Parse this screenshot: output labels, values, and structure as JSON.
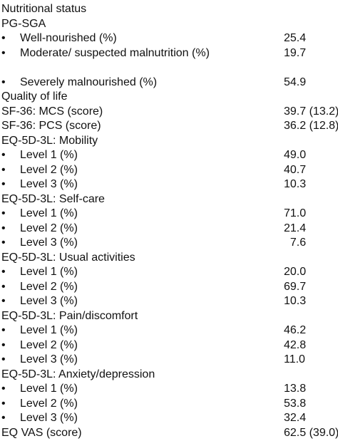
{
  "rows": [
    {
      "kind": "header",
      "label": "Nutritional status",
      "value": ""
    },
    {
      "kind": "header",
      "label": "PG-SGA",
      "value": ""
    },
    {
      "kind": "bullet",
      "label": "Well-nourished (%)",
      "value": "25.4"
    },
    {
      "kind": "bullet-tall",
      "label": "Moderate/ suspected malnutrition (%)",
      "value": "19.7"
    },
    {
      "kind": "bullet",
      "label": "Severely malnourished (%)",
      "value": "54.9"
    },
    {
      "kind": "header",
      "label": "Quality of life",
      "value": ""
    },
    {
      "kind": "header",
      "label": "SF-36: MCS (score)",
      "value": "39.7 (13.2)"
    },
    {
      "kind": "header",
      "label": "SF-36: PCS (score)",
      "value": "36.2 (12.8)"
    },
    {
      "kind": "header",
      "label": "EQ-5D-3L: Mobility",
      "value": ""
    },
    {
      "kind": "bullet",
      "label": "Level 1 (%)",
      "value": "49.0"
    },
    {
      "kind": "bullet",
      "label": "Level 2 (%)",
      "value": "40.7"
    },
    {
      "kind": "bullet",
      "label": "Level 3 (%)",
      "value": "10.3"
    },
    {
      "kind": "header",
      "label": "EQ-5D-3L: Self-care",
      "value": ""
    },
    {
      "kind": "bullet",
      "label": "Level 1 (%)",
      "value": "71.0"
    },
    {
      "kind": "bullet",
      "label": "Level 2 (%)",
      "value": "21.4"
    },
    {
      "kind": "bullet",
      "label": "Level 3 (%)",
      "value": " 7.6"
    },
    {
      "kind": "header",
      "label": "EQ-5D-3L: Usual activities",
      "value": ""
    },
    {
      "kind": "bullet",
      "label": "Level 1 (%)",
      "value": "20.0"
    },
    {
      "kind": "bullet",
      "label": "Level 2 (%)",
      "value": "69.7"
    },
    {
      "kind": "bullet",
      "label": "Level 3 (%)",
      "value": "10.3"
    },
    {
      "kind": "header",
      "label": "EQ-5D-3L: Pain/discomfort",
      "value": ""
    },
    {
      "kind": "bullet",
      "label": "Level 1 (%)",
      "value": "46.2"
    },
    {
      "kind": "bullet",
      "label": "Level 2 (%)",
      "value": "42.8"
    },
    {
      "kind": "bullet",
      "label": "Level 3 (%)",
      "value": "11.0"
    },
    {
      "kind": "header",
      "label": "EQ-5D-3L: Anxiety/depression",
      "value": ""
    },
    {
      "kind": "bullet",
      "label": "Level 1 (%)",
      "value": "13.8"
    },
    {
      "kind": "bullet",
      "label": "Level 2 (%)",
      "value": "53.8"
    },
    {
      "kind": "bullet",
      "label": "Level 3 (%)",
      "value": "32.4"
    },
    {
      "kind": "header",
      "label": "EQ VAS (score)",
      "value": "62.5 (39.0)"
    }
  ],
  "bullet_glyph": "•"
}
